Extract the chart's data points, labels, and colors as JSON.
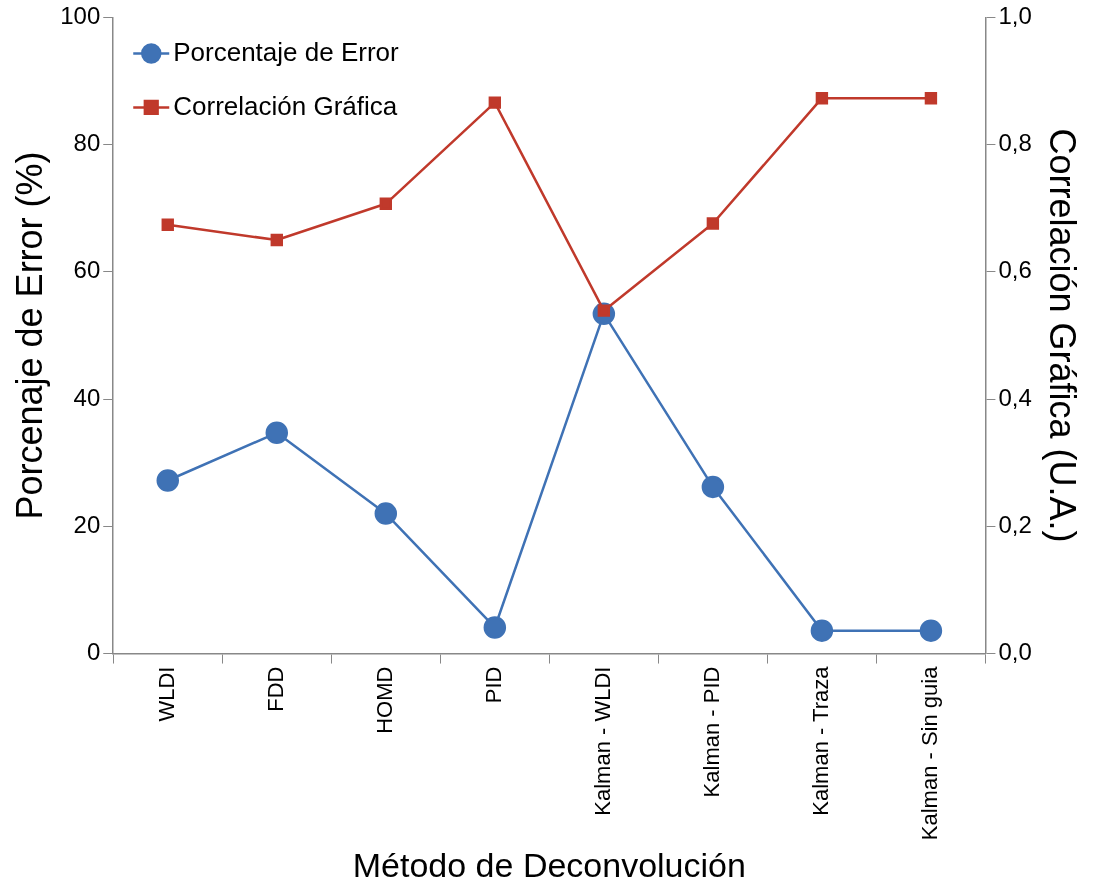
{
  "chart_data": {
    "type": "line",
    "xlabel": "Método de Deconvolución",
    "ylabel": "Porcenaje de Error (%)",
    "y2label": "Correlación Gráfica (U.A.)",
    "categories": [
      "WLDI",
      "FDD",
      "HOMD",
      "PID",
      "Kalman - WLDI",
      "Kalman - PID",
      "Kalman - Traza",
      "Kalman - Sin guia"
    ],
    "series": [
      {
        "name": "Porcentaje de Error",
        "color": "#3f72b5",
        "marker": "circle",
        "values": [
          27.2,
          34.7,
          22.0,
          4.1,
          53.4,
          26.2,
          3.6,
          3.6
        ]
      },
      {
        "name": "Correlación Gráfica",
        "color": "#c0392b",
        "marker": "square",
        "axis": "y2",
        "values": [
          0.674,
          0.65,
          0.707,
          0.866,
          0.539,
          0.676,
          0.873,
          0.873
        ]
      }
    ],
    "ylim": [
      0,
      100
    ],
    "yticks": [
      0,
      20,
      40,
      60,
      80,
      100
    ],
    "y2lim": [
      0,
      1
    ],
    "y2ticks": [
      {
        "value": 0,
        "label": "0,0"
      },
      {
        "value": 0.2,
        "label": "0,2"
      },
      {
        "value": 0.4,
        "label": "0,4"
      },
      {
        "value": 0.6,
        "label": "0,6"
      },
      {
        "value": 0.8,
        "label": "0,8"
      },
      {
        "value": 1,
        "label": "1,0"
      }
    ],
    "grid": false,
    "legend": "top left",
    "line_style": "solid"
  }
}
